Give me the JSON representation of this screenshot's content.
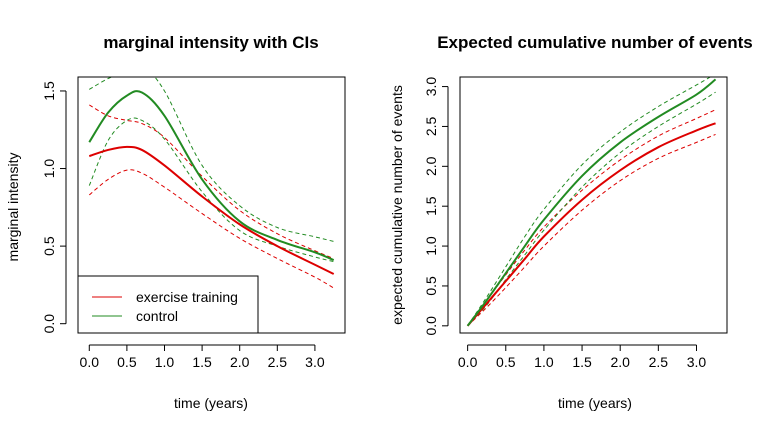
{
  "chart_data": [
    {
      "type": "line",
      "title": "marginal intensity with CIs",
      "xlabel": "time (years)",
      "ylabel": "marginal intensity",
      "xlim": [
        -0.15,
        3.4
      ],
      "ylim": [
        -0.06,
        1.59
      ],
      "xticks": [
        "0.0",
        "0.5",
        "1.0",
        "1.5",
        "2.0",
        "2.5",
        "3.0"
      ],
      "yticks": [
        "0.0",
        "0.5",
        "1.0",
        "1.5"
      ],
      "legend": {
        "position": "bottom-left",
        "entries": [
          {
            "label": "exercise training",
            "color": "#dd0000"
          },
          {
            "label": "control",
            "color": "#228b22"
          }
        ]
      },
      "x": [
        0,
        0.25,
        0.5,
        0.7,
        1.0,
        1.5,
        2.0,
        2.5,
        3.0,
        3.25
      ],
      "series": [
        {
          "name": "exercise training",
          "color": "#dd0000",
          "style": "solid",
          "values": [
            1.08,
            1.12,
            1.14,
            1.12,
            1.02,
            0.82,
            0.64,
            0.5,
            0.38,
            0.32
          ]
        },
        {
          "color": "#dd0000",
          "style": "dashed",
          "values": [
            0.83,
            0.93,
            0.99,
            0.97,
            0.88,
            0.71,
            0.55,
            0.42,
            0.3,
            0.23
          ]
        },
        {
          "color": "#dd0000",
          "style": "dashed",
          "values": [
            1.41,
            1.34,
            1.31,
            1.29,
            1.2,
            0.95,
            0.73,
            0.58,
            0.47,
            0.42
          ]
        },
        {
          "name": "control",
          "color": "#228b22",
          "style": "solid",
          "values": [
            1.17,
            1.36,
            1.47,
            1.49,
            1.34,
            0.93,
            0.66,
            0.54,
            0.46,
            0.41
          ]
        },
        {
          "color": "#228b22",
          "style": "dashed",
          "values": [
            0.89,
            1.18,
            1.31,
            1.31,
            1.19,
            0.85,
            0.6,
            0.5,
            0.43,
            0.4
          ]
        },
        {
          "color": "#228b22",
          "style": "dashed",
          "values": [
            1.51,
            1.58,
            1.63,
            1.66,
            1.5,
            1.02,
            0.76,
            0.62,
            0.56,
            0.53
          ]
        }
      ]
    },
    {
      "type": "line",
      "title": "Expected cumulative number of events",
      "xlabel": "time (years)",
      "ylabel": "expected cumulative number of events",
      "xlim": [
        -0.1,
        3.4
      ],
      "ylim": [
        -0.09,
        3.12
      ],
      "xticks": [
        "0.0",
        "0.5",
        "1.0",
        "1.5",
        "2.0",
        "2.5",
        "3.0"
      ],
      "yticks": [
        "0.0",
        "0.5",
        "1.0",
        "1.5",
        "2.0",
        "2.5",
        "3.0"
      ],
      "x": [
        0,
        0.25,
        0.5,
        0.75,
        1.0,
        1.5,
        2.0,
        2.5,
        3.0,
        3.25
      ],
      "series": [
        {
          "name": "exercise training",
          "color": "#dd0000",
          "style": "solid",
          "values": [
            0,
            0.28,
            0.56,
            0.84,
            1.12,
            1.58,
            1.95,
            2.24,
            2.45,
            2.54
          ]
        },
        {
          "color": "#dd0000",
          "style": "dashed",
          "values": [
            0,
            0.23,
            0.48,
            0.74,
            1.0,
            1.45,
            1.82,
            2.1,
            2.3,
            2.4
          ]
        },
        {
          "color": "#dd0000",
          "style": "dashed",
          "values": [
            0,
            0.32,
            0.64,
            0.95,
            1.24,
            1.7,
            2.08,
            2.38,
            2.6,
            2.71
          ]
        },
        {
          "name": "control",
          "color": "#228b22",
          "style": "solid",
          "values": [
            0,
            0.32,
            0.66,
            1.0,
            1.33,
            1.88,
            2.3,
            2.62,
            2.9,
            3.09
          ]
        },
        {
          "color": "#228b22",
          "style": "dashed",
          "values": [
            0,
            0.26,
            0.58,
            0.89,
            1.2,
            1.74,
            2.17,
            2.5,
            2.78,
            2.93
          ]
        },
        {
          "color": "#228b22",
          "style": "dashed",
          "values": [
            0,
            0.36,
            0.74,
            1.12,
            1.46,
            2.02,
            2.43,
            2.75,
            3.02,
            3.16
          ]
        }
      ]
    }
  ]
}
